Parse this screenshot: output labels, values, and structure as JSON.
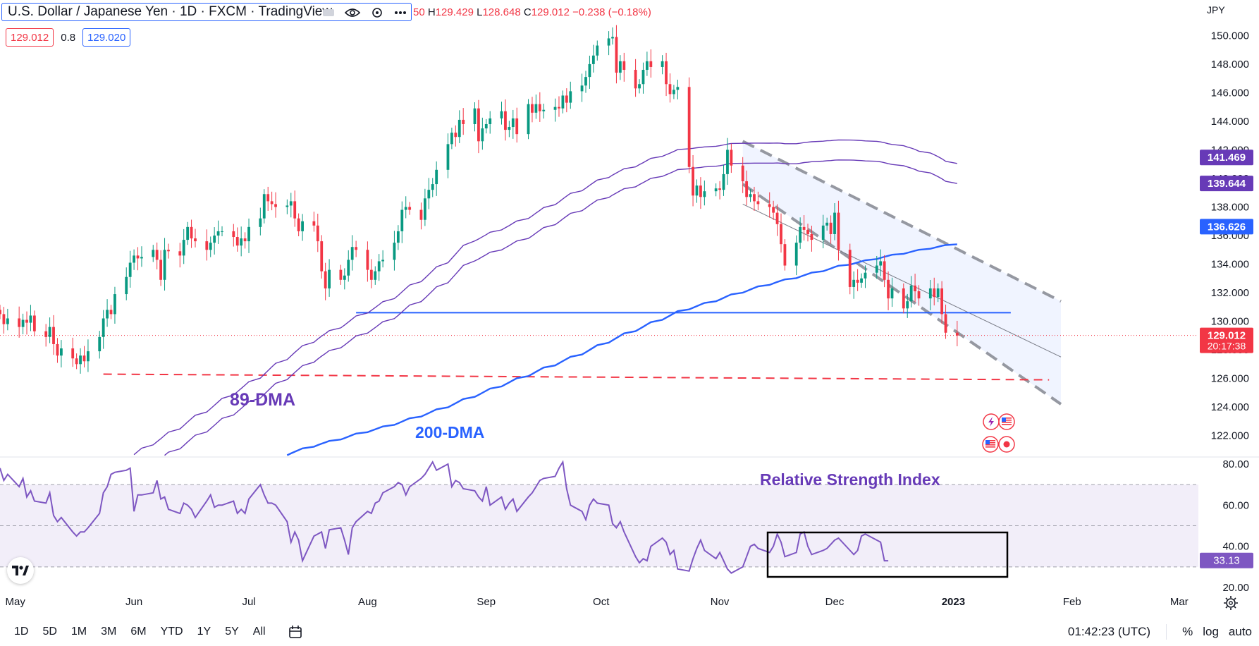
{
  "header": {
    "title": "U.S. Dollar / Japanese Yen · 1D · FXCM · TradingView",
    "ohlc_prefix": "50",
    "high_label": "H",
    "high": "129.429",
    "low_label": "L",
    "low": "128.648",
    "close_label": "C",
    "close": "129.012",
    "change": "−0.238 (−0.18%)",
    "sell_price": "129.012",
    "spread": "0.8",
    "buy_price": "129.020",
    "currency": "JPY"
  },
  "bottom_bar": {
    "timeframes": [
      "1D",
      "5D",
      "1M",
      "3M",
      "6M",
      "YTD",
      "1Y",
      "5Y",
      "All"
    ],
    "clock": "01:42:23 (UTC)",
    "percent": "%",
    "log": "log",
    "auto": "auto"
  },
  "icons": [
    "calendar-range-icon",
    "eye-icon",
    "settings-icon",
    "tradingview-logo-icon",
    "gear-icon",
    "flag-us-icon",
    "event-icon"
  ],
  "colors": {
    "up": "#089981",
    "down": "#f23645",
    "ma200": "#2962ff",
    "ma89": "#673ab7",
    "rsi": "#7e57c2",
    "annotation_ma": "#673ab7",
    "annotation_ma200": "#2962ff"
  },
  "chart_data": {
    "type": "candlestick",
    "price_axis": {
      "min": 120.5,
      "max": 151.5,
      "ticks": [
        122,
        124,
        126,
        128,
        130,
        132,
        134,
        136,
        138,
        140,
        142,
        144,
        146,
        148,
        150
      ]
    },
    "time_axis": {
      "labels": [
        "May",
        "Jun",
        "Jul",
        "Aug",
        "Sep",
        "Oct",
        "Nov",
        "Dec",
        "2023",
        "Feb",
        "Mar"
      ],
      "dates": [
        "2022-05-01",
        "2022-06-01",
        "2022-07-01",
        "2022-08-01",
        "2022-09-01",
        "2022-10-01",
        "2022-11-01",
        "2022-12-01",
        "2023-01-01",
        "2023-02-01",
        "2023-03-01"
      ],
      "start": "2022-04-27",
      "end": "2023-03-06"
    },
    "price_tags": [
      {
        "value": 141.469,
        "label": "141.469",
        "color": "#673ab7"
      },
      {
        "value": 139.644,
        "label": "139.644",
        "color": "#673ab7"
      },
      {
        "value": 136.626,
        "label": "136.626",
        "color": "#2962ff"
      },
      {
        "value": 129.012,
        "label": "129.012",
        "color": "#f23645",
        "countdown": "20:17:38"
      }
    ],
    "closes": [
      130.5,
      129.8,
      130.2,
      129.6,
      130.1,
      129.9,
      130.4,
      129.3,
      128.9,
      129.6,
      128.4,
      127.6,
      128.1,
      127.4,
      127.0,
      127.6,
      127.2,
      127.9,
      128.9,
      130.2,
      130.8,
      130.5,
      131.9,
      133.1,
      134.1,
      134.6,
      134.4,
      134.5,
      135.0,
      134.3,
      132.9,
      135.0,
      134.9,
      134.6,
      135.7,
      136.6,
      135.8,
      135.6,
      135.0,
      135.5,
      136.0,
      136.3,
      136.3,
      135.9,
      135.3,
      135.8,
      135.6,
      136.6,
      137.2,
      138.9,
      138.4,
      138.2,
      138.0,
      138.1,
      138.4,
      137.2,
      136.3,
      137.0,
      136.7,
      135.6,
      133.5,
      132.3,
      133.6,
      132.9,
      133.2,
      134.3,
      135.2,
      135.0,
      133.6,
      132.9,
      133.5,
      134.2,
      134.3,
      135.5,
      136.3,
      137.8,
      138.0,
      137.8,
      137.1,
      138.6,
      139.2,
      139.6,
      140.6,
      142.4,
      143.2,
      142.9,
      144.1,
      143.8,
      144.9,
      142.6,
      143.5,
      143.8,
      144.2,
      144.7,
      143.4,
      143.6,
      144.2,
      143.1,
      145.2,
      144.6,
      145.2,
      144.7,
      144.8,
      145.0,
      144.9,
      145.8,
      145.3,
      146.1,
      146.5,
      147.1,
      148.0,
      148.6,
      149.3,
      149.8,
      149.9,
      147.4,
      148.2,
      147.6,
      146.3,
      146.6,
      147.6,
      148.2,
      147.8,
      148.2,
      146.6,
      145.9,
      146.2,
      146.4,
      140.8,
      138.8,
      139.5,
      138.7,
      139.1,
      139.3,
      139.2,
      140.3,
      142.0,
      140.9,
      139.8,
      138.7,
      138.9,
      138.4,
      138.2,
      138.0,
      137.6,
      136.8,
      135.4,
      133.9,
      135.5,
      136.6,
      136.4,
      136.1,
      135.7,
      136.7,
      136.9,
      136.1,
      137.6,
      135.0,
      132.4,
      132.9,
      132.7,
      133.0,
      133.4,
      133.9,
      134.2,
      132.9,
      131.6,
      132.3,
      130.9,
      131.4,
      132.5,
      132.1,
      131.6,
      132.3,
      131.7,
      132.3,
      130.5,
      129.2,
      129.0
    ],
    "overlays": [
      {
        "name": "89-DMA",
        "color": "#673ab7",
        "kind": "envelope"
      },
      {
        "name": "200-DMA",
        "color": "#2962ff",
        "kind": "sma"
      }
    ],
    "annotations": [
      {
        "text": "89-DMA",
        "color": "#673ab7"
      },
      {
        "text": "200-DMA",
        "color": "#2962ff"
      },
      {
        "text": "Relative Strength Index",
        "color": "#673ab7"
      }
    ],
    "support_lines": [
      {
        "value": 130.6,
        "from": "2022-07-29",
        "to": "2023-01-16",
        "color": "#2962ff",
        "style": "solid"
      },
      {
        "value": 126.3,
        "from": "2022-05-24",
        "to": "2023-01-26",
        "color": "#f23645",
        "style": "dashed"
      }
    ],
    "rsi": {
      "axis": {
        "min": 20,
        "max": 80,
        "ticks": [
          20,
          40,
          60,
          80
        ]
      },
      "upper_band": 70,
      "lower_band": 30,
      "mid": 50,
      "last_value": "33.13",
      "values": [
        78,
        72,
        75,
        69,
        73,
        64,
        67,
        62,
        61,
        66,
        55,
        52,
        54,
        47,
        45,
        47,
        47,
        49,
        56,
        66,
        69,
        75,
        76,
        77,
        78,
        57,
        65,
        65,
        66,
        72,
        63,
        64,
        58,
        56,
        61,
        60,
        58,
        54,
        62,
        65,
        59,
        60,
        60,
        62,
        56,
        58,
        56,
        63,
        70,
        65,
        61,
        61,
        60,
        52,
        42,
        47,
        43,
        33,
        45,
        46,
        47,
        39,
        48,
        49,
        43,
        36,
        49,
        52,
        57,
        56,
        61,
        62,
        66,
        69,
        71,
        70,
        65,
        69,
        73,
        75,
        78,
        81,
        77,
        80,
        69,
        72,
        71,
        68,
        67,
        64,
        62,
        69,
        60,
        64,
        58,
        61,
        63,
        57,
        64,
        66,
        69,
        72,
        73,
        74,
        78,
        81,
        68,
        60,
        57,
        53,
        60,
        63,
        61,
        60,
        51,
        49,
        52,
        47,
        35,
        32,
        34,
        33,
        40,
        44,
        42,
        36,
        38,
        29,
        28,
        34,
        39,
        43,
        38,
        34,
        37,
        33,
        29,
        27,
        30,
        35,
        40,
        41,
        39,
        37,
        40,
        46,
        42,
        35,
        37,
        46,
        47,
        40,
        36,
        38,
        39,
        41,
        43,
        44,
        38,
        36,
        38,
        45,
        46,
        43,
        42,
        33,
        33
      ]
    },
    "channel": {
      "upper": "142.6 → 131.4",
      "lower": "139.6 → 124.2",
      "mid": "138.2 → 127.5"
    }
  }
}
